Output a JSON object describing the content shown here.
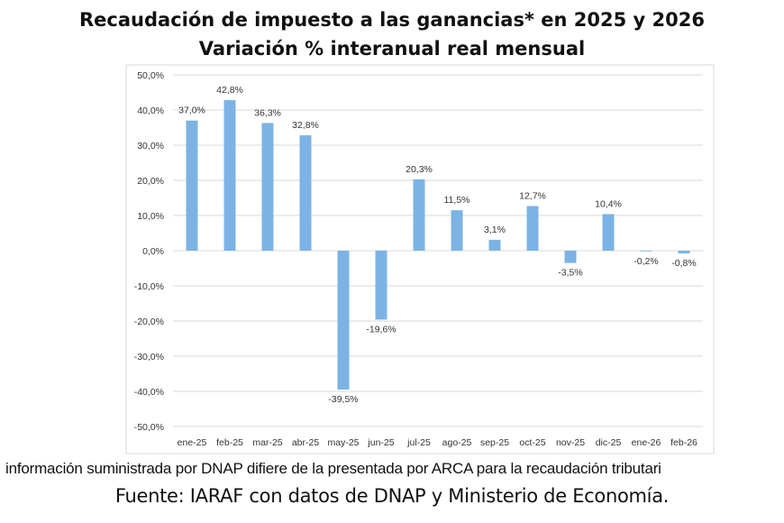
{
  "chart_data": {
    "type": "bar",
    "title": "Recaudación  de impuesto a las ganancias* en 2025 y 2026",
    "subtitle": "Variación % interanual real mensual",
    "categories": [
      "ene-25",
      "feb-25",
      "mar-25",
      "abr-25",
      "may-25",
      "jun-25",
      "jul-25",
      "ago-25",
      "sep-25",
      "oct-25",
      "nov-25",
      "dic-25",
      "ene-26",
      "feb-26"
    ],
    "values": [
      37.0,
      42.8,
      36.3,
      32.8,
      -39.5,
      -19.6,
      20.3,
      11.5,
      3.1,
      12.7,
      -3.5,
      10.4,
      -0.2,
      -0.8
    ],
    "data_labels": [
      "37,0%",
      "42,8%",
      "36,3%",
      "32,8%",
      "-39,5%",
      "-19,6%",
      "20,3%",
      "11,5%",
      "3,1%",
      "12,7%",
      "-3,5%",
      "10,4%",
      "-0,2%",
      "-0,8%"
    ],
    "y_ticks": [
      50,
      40,
      30,
      20,
      10,
      0,
      -10,
      -20,
      -30,
      -40,
      -50
    ],
    "y_tick_labels": [
      "50,0%",
      "40,0%",
      "30,0%",
      "20,0%",
      "10,0%",
      "0,0%",
      "-10,0%",
      "-20,0%",
      "-30,0%",
      "-40,0%",
      "-50,0%"
    ],
    "ylim": [
      -50,
      50
    ],
    "xlabel": "",
    "ylabel": "",
    "grid": true,
    "legend": "none",
    "bar_color": "#7cb3e4",
    "grid_color": "#d9d9d9"
  },
  "footnote": "información suministrada por DNAP difiere de la presentada por ARCA para la recaudación tributari",
  "source": "Fuente: IARAF con datos de DNAP y Ministerio de Economía."
}
